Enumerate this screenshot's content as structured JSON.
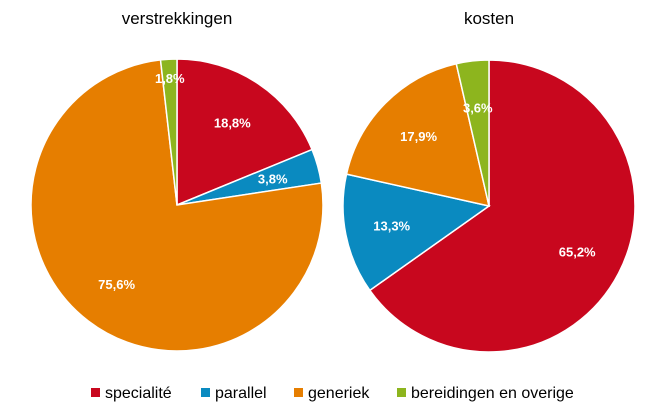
{
  "chart_data": [
    {
      "type": "pie",
      "title": "verstrekkingen",
      "slices": [
        {
          "category": "specialité",
          "value": 18.8,
          "label": "18,8%"
        },
        {
          "category": "parallel",
          "value": 3.8,
          "label": "3,8%"
        },
        {
          "category": "generiek",
          "value": 75.6,
          "label": "75,6%"
        },
        {
          "category": "bereidingen en overige",
          "value": 1.8,
          "label": "1,8%"
        }
      ]
    },
    {
      "type": "pie",
      "title": "kosten",
      "slices": [
        {
          "category": "specialité",
          "value": 65.2,
          "label": "65,2%"
        },
        {
          "category": "parallel",
          "value": 13.3,
          "label": "13,3%"
        },
        {
          "category": "generiek",
          "value": 17.9,
          "label": "17,9%"
        },
        {
          "category": "bereidingen en overige",
          "value": 3.6,
          "label": "3,6%"
        }
      ]
    }
  ],
  "legend": {
    "placement": "bottom",
    "items": [
      {
        "label": "specialité",
        "color": "#C8071E"
      },
      {
        "label": "parallel",
        "color": "#0A8AC0"
      },
      {
        "label": "generiek",
        "color": "#E67E00"
      },
      {
        "label": "bereidingen en overige",
        "color": "#8DB51E"
      }
    ]
  }
}
